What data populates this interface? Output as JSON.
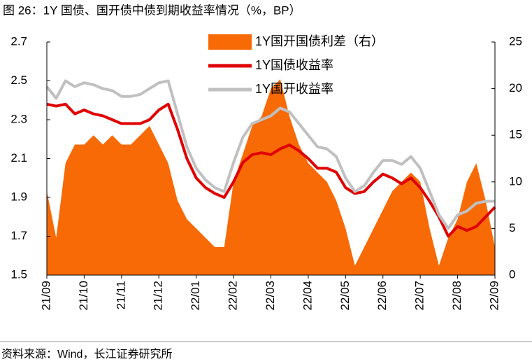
{
  "chart_data": {
    "type": "line",
    "title": "图 26：1Y 国债、国开债中债到期收益率情况（%，BP）",
    "source": "资料来源：Wind，长江证券研究所",
    "categories": [
      "21/09",
      null,
      null,
      null,
      "21/10",
      null,
      null,
      null,
      "21/11",
      null,
      null,
      null,
      "21/12",
      null,
      null,
      null,
      "22/01",
      null,
      null,
      null,
      "22/02",
      null,
      null,
      null,
      "22/03",
      null,
      null,
      null,
      "22/04",
      null,
      null,
      null,
      "22/05",
      null,
      null,
      null,
      "22/06",
      null,
      null,
      null,
      "22/07",
      null,
      null,
      null,
      "22/08",
      null,
      null,
      null,
      "22/09"
    ],
    "series": [
      {
        "name": "1Y国开国债利差（右）",
        "color": "#f76a06",
        "kind": "area",
        "axis": "y2",
        "values": [
          9,
          4,
          12,
          14,
          14,
          15,
          14,
          15,
          14,
          14,
          15,
          16,
          14,
          12,
          8,
          6,
          5,
          4,
          3,
          3,
          10,
          13,
          16,
          17,
          20,
          21,
          17,
          14,
          12,
          11,
          10,
          8,
          5,
          1,
          3,
          5,
          7,
          9,
          10,
          11,
          10,
          5,
          1,
          4,
          6,
          10,
          12,
          8,
          3
        ]
      },
      {
        "name": "1Y国债收益率",
        "color": "#e00000",
        "kind": "line",
        "values": [
          2.38,
          2.37,
          2.38,
          2.33,
          2.35,
          2.33,
          2.32,
          2.3,
          2.28,
          2.28,
          2.28,
          2.3,
          2.35,
          2.38,
          2.25,
          2.1,
          2.0,
          1.95,
          1.92,
          1.9,
          1.98,
          2.08,
          2.12,
          2.13,
          2.12,
          2.15,
          2.17,
          2.14,
          2.1,
          2.05,
          2.05,
          2.03,
          1.95,
          1.92,
          1.93,
          1.98,
          2.02,
          2.0,
          1.97,
          2.0,
          1.95,
          1.88,
          1.8,
          1.7,
          1.75,
          1.73,
          1.75,
          1.8,
          1.85
        ]
      },
      {
        "name": "1Y国开收益率",
        "color": "#c0c0c0",
        "kind": "line",
        "values": [
          2.47,
          2.41,
          2.5,
          2.47,
          2.49,
          2.48,
          2.46,
          2.45,
          2.42,
          2.42,
          2.43,
          2.46,
          2.49,
          2.5,
          2.33,
          2.16,
          2.05,
          1.99,
          1.95,
          1.93,
          2.08,
          2.21,
          2.28,
          2.3,
          2.32,
          2.36,
          2.34,
          2.28,
          2.22,
          2.16,
          2.15,
          2.11,
          2.0,
          1.93,
          1.96,
          2.03,
          2.09,
          2.09,
          2.07,
          2.11,
          2.05,
          1.93,
          1.81,
          1.74,
          1.81,
          1.83,
          1.87,
          1.88,
          1.88
        ]
      }
    ],
    "ylim": [
      1.5,
      2.7
    ],
    "yticks": [
      1.5,
      1.7,
      1.9,
      2.1,
      2.3,
      2.5,
      2.7
    ],
    "y2lim": [
      0,
      25
    ],
    "y2ticks": [
      0,
      5,
      10,
      15,
      20,
      25
    ]
  }
}
